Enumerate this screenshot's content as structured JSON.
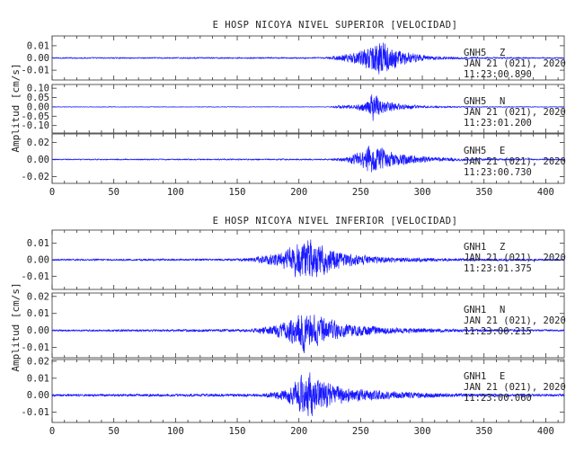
{
  "colors": {
    "trace": "#1a1aff",
    "axis": "#333333",
    "text": "#222222"
  },
  "chart_data": [
    {
      "type": "line",
      "title": "E HOSP NICOYA NIVEL SUPERIOR [VELOCIDAD]",
      "ylabel": "Amplitud [cm/s]",
      "xlabel": "",
      "xlim": [
        0,
        415
      ],
      "xticks": [
        0,
        50,
        100,
        150,
        200,
        250,
        300,
        350,
        400
      ],
      "grid": false,
      "panels": [
        {
          "station": "GNH5",
          "component": "Z",
          "date": "JAN 21 (021), 2020",
          "time": "11:23:00.890",
          "ylim": [
            -0.018,
            0.018
          ],
          "yticks": [
            "0.01",
            "0.00",
            "-0.01"
          ],
          "yvals": [
            0.01,
            0.0,
            -0.01
          ],
          "envelope_t": [
            0,
            220,
            235,
            250,
            258,
            265,
            272,
            280,
            290,
            305,
            330,
            415
          ],
          "envelope_a": [
            0.0006,
            0.0007,
            0.003,
            0.007,
            0.012,
            0.016,
            0.014,
            0.009,
            0.005,
            0.002,
            0.001,
            0.0006
          ]
        },
        {
          "station": "GNH5",
          "component": "N",
          "date": "JAN 21 (021), 2020",
          "time": "11:23:01.200",
          "ylim": [
            -0.14,
            0.12
          ],
          "yticks": [
            "0.10",
            "0.05",
            "0.00",
            "-0.05",
            "-0.10"
          ],
          "yvals": [
            0.1,
            0.05,
            0.0,
            -0.05,
            -0.1
          ],
          "envelope_t": [
            0,
            225,
            232,
            245,
            255,
            260,
            264,
            270,
            280,
            300,
            340,
            415
          ],
          "envelope_a": [
            0.002,
            0.002,
            0.01,
            0.012,
            0.04,
            0.09,
            0.07,
            0.04,
            0.02,
            0.008,
            0.003,
            0.002
          ]
        },
        {
          "station": "GNH5",
          "component": "E",
          "date": "JAN 21 (021), 2020",
          "time": "11:23:00.730",
          "ylim": [
            -0.028,
            0.03
          ],
          "yticks": [
            "0.02",
            "0.00",
            "-0.02"
          ],
          "yvals": [
            0.02,
            0.0,
            -0.02
          ],
          "envelope_t": [
            0,
            225,
            240,
            250,
            258,
            265,
            275,
            290,
            310,
            340,
            415
          ],
          "envelope_a": [
            0.0008,
            0.001,
            0.004,
            0.01,
            0.02,
            0.017,
            0.01,
            0.006,
            0.003,
            0.0015,
            0.0008
          ]
        }
      ]
    },
    {
      "type": "line",
      "title": "E HOSP NICOYA NIVEL INFERIOR [VELOCIDAD]",
      "ylabel": "Amplitud [cm/s]",
      "xlabel": "",
      "xlim": [
        0,
        415
      ],
      "xticks": [
        0,
        50,
        100,
        150,
        200,
        250,
        300,
        350,
        400
      ],
      "grid": false,
      "panels": [
        {
          "station": "GNH1",
          "component": "Z",
          "date": "JAN 21 (021), 2020",
          "time": "11:23:01.375",
          "ylim": [
            -0.018,
            0.018
          ],
          "yticks": [
            "0.01",
            "0.00",
            "-0.01"
          ],
          "yvals": [
            0.01,
            0.0,
            -0.01
          ],
          "envelope_t": [
            0,
            150,
            165,
            185,
            200,
            205,
            212,
            225,
            245,
            270,
            320,
            415
          ],
          "envelope_a": [
            0.0006,
            0.0008,
            0.002,
            0.005,
            0.012,
            0.016,
            0.013,
            0.008,
            0.004,
            0.002,
            0.001,
            0.0006
          ]
        },
        {
          "station": "GNH1",
          "component": "N",
          "date": "JAN 21 (021), 2020",
          "time": "11:23:00.215",
          "ylim": [
            -0.016,
            0.022
          ],
          "yticks": [
            "0.02",
            "0.01",
            "0.00",
            "-0.01"
          ],
          "yvals": [
            0.02,
            0.01,
            0.0,
            -0.01
          ],
          "envelope_t": [
            0,
            160,
            175,
            190,
            198,
            205,
            212,
            225,
            245,
            280,
            330,
            415
          ],
          "envelope_a": [
            0.0006,
            0.001,
            0.003,
            0.006,
            0.01,
            0.014,
            0.011,
            0.007,
            0.004,
            0.002,
            0.001,
            0.0006
          ]
        },
        {
          "station": "GNH1",
          "component": "E",
          "date": "JAN 21 (021), 2020",
          "time": "11:23:00.060",
          "ylim": [
            -0.016,
            0.021
          ],
          "yticks": [
            "0.02",
            "0.01",
            "0.00",
            "-0.01"
          ],
          "yvals": [
            0.02,
            0.01,
            0.0,
            -0.01
          ],
          "envelope_t": [
            0,
            170,
            185,
            195,
            202,
            208,
            215,
            230,
            250,
            290,
            340,
            415
          ],
          "envelope_a": [
            0.0008,
            0.001,
            0.003,
            0.007,
            0.013,
            0.016,
            0.011,
            0.006,
            0.004,
            0.002,
            0.001,
            0.0008
          ]
        }
      ]
    }
  ]
}
